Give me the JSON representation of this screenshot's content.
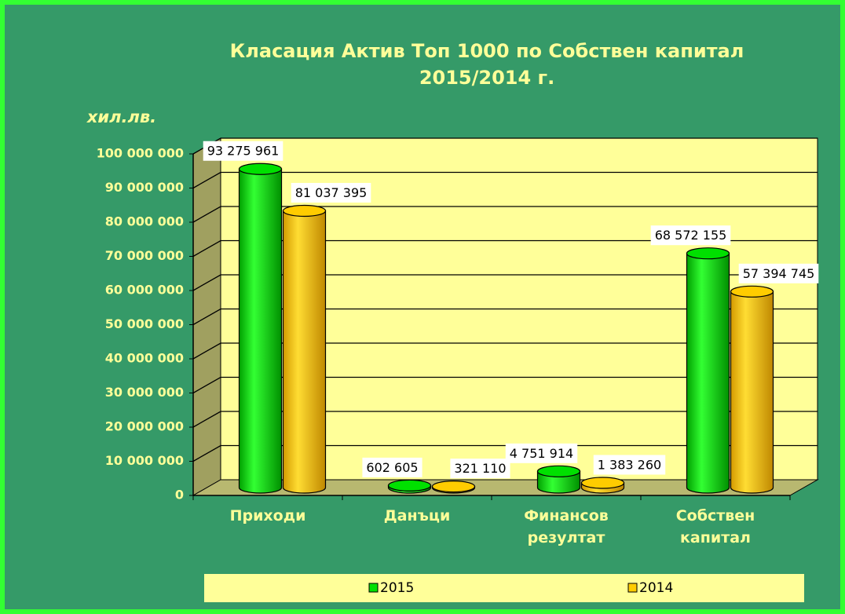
{
  "chart_data": {
    "type": "bar",
    "title": [
      "Класация Актив Топ 1000  по Собствен капитал",
      "2015/2014 г."
    ],
    "y_label": "хил.лв.",
    "categories": [
      "Приходи",
      "Данъци",
      "Финансов резултат",
      "Собствен капитал"
    ],
    "series": [
      {
        "name": "2015",
        "color": "#00e000",
        "values": [
          93275961,
          602605,
          4751914,
          68572155
        ],
        "value_labels": [
          "93 275 961",
          "602 605",
          "4 751 914",
          "68 572 155"
        ]
      },
      {
        "name": "2014",
        "color": "#ffcc00",
        "values": [
          81037395,
          321110,
          1383260,
          57394745
        ],
        "value_labels": [
          "81 037 395",
          "321 110",
          "1 383 260",
          "57 394 745"
        ]
      }
    ],
    "ylim": [
      0,
      100000000
    ],
    "yticks": [
      {
        "value": 0,
        "label": "0"
      },
      {
        "value": 10000000,
        "label": "10 000 000"
      },
      {
        "value": 20000000,
        "label": "20 000 000"
      },
      {
        "value": 30000000,
        "label": "30 000 000"
      },
      {
        "value": 40000000,
        "label": "40 000 000"
      },
      {
        "value": 50000000,
        "label": "50 000 000"
      },
      {
        "value": 60000000,
        "label": "60 000 000"
      },
      {
        "value": 70000000,
        "label": "70 000 000"
      },
      {
        "value": 80000000,
        "label": "80 000 000"
      },
      {
        "value": 90000000,
        "label": "90 000 000"
      },
      {
        "value": 100000000,
        "label": "100 000 000"
      }
    ],
    "grid": true,
    "legend": "bottom"
  }
}
